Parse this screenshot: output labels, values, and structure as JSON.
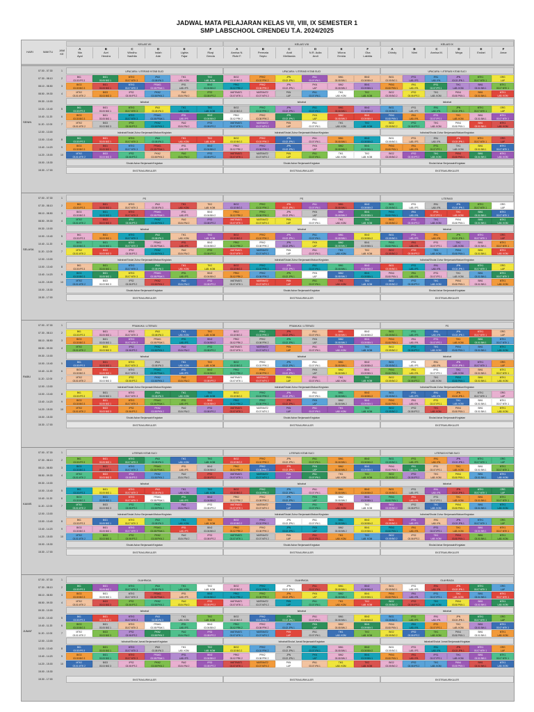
{
  "header": {
    "title_line1": "JADWAL MATA PELAJARAN KELAS VII, VIII, IX SEMESTER 1",
    "title_line2": "SMP LABSCHOOL CIRENDEU T.A. 2024/2025",
    "hari": "HARI",
    "waktu": "WAKTU",
    "jam_ke": "JAM KE",
    "groups": [
      "KELAS VII",
      "KELAS VIII",
      "KELAS IX"
    ],
    "vii": [
      {
        "k": "A",
        "w1": "Nia",
        "w2": "Ayal"
      },
      {
        "k": "B",
        "w1": "Avri",
        "w2": "Hendra"
      },
      {
        "k": "C",
        "w1": "Windhu",
        "w2": "Nadhila"
      },
      {
        "k": "D",
        "w1": "Indah",
        "w2": "Ade"
      },
      {
        "k": "E",
        "w1": "Lighta",
        "w2": "Fajar"
      },
      {
        "k": "F",
        "w1": "Rizqi",
        "w2": "Genda"
      }
    ],
    "viii": [
      {
        "k": "A",
        "w1": "Annisa N.",
        "w2": "Rizki F."
      },
      {
        "k": "B",
        "w1": "Permata",
        "w2": "Septo"
      },
      {
        "k": "C",
        "w1": "Andi",
        "w2": "Meilianda"
      },
      {
        "k": "D",
        "w1": "N.R. Aulia",
        "w2": "Andi"
      },
      {
        "k": "E",
        "w1": "Wiona",
        "w2": "Ernida"
      },
      {
        "k": "F",
        "w1": "Oka",
        "w2": "Lakhita"
      }
    ],
    "ix": [
      {
        "k": "A",
        "w1": "Chindy"
      },
      {
        "k": "B",
        "w1": "Nimi"
      },
      {
        "k": "C",
        "w1": "Annisa M."
      },
      {
        "k": "D",
        "w1": "Mega"
      },
      {
        "k": "E",
        "w1": "Endari"
      },
      {
        "k": "F",
        "w1": "Amar"
      }
    ]
  },
  "times": [
    "07.00 - 07.30",
    "07.30 - 08.10",
    "08.10 - 08.50",
    "08.50 - 09.30",
    "09.30 - 10.00",
    "10.00 - 10.40",
    "10.40 - 11.20",
    "11.20 - 12.00",
    "12.00 - 13.00",
    "13.00 - 13.40",
    "13.40 - 14.20",
    "14.20 - 15.00",
    "15.00 - 15.30",
    "15.30 - 17.00"
  ],
  "jam": [
    "1",
    "2",
    "3",
    "4",
    "",
    "5",
    "6",
    "7",
    "",
    "8",
    "9",
    "10",
    "",
    ""
  ],
  "days": [
    {
      "name": "SENIN",
      "band_top": [
        "UPACARA / LITERASI KITAB SUCI",
        "UPACARA / LITERASI KITAB SUCI",
        "UPACARA / LITERASI KITAB SUCI"
      ],
      "istirahat": "Istirahat",
      "ishoma": "Istirahat/Sholat Zuhur Berjamaah/Makan/Kegiatan",
      "asr": "Sholat Ashar Berjamaah/Kegiatan",
      "ekskul": "EKSTRAKURIKULER"
    },
    {
      "name": "SELASA",
      "band_top": [
        "PS",
        "PS",
        "LITERASI"
      ],
      "istirahat": "Istirahat",
      "ishoma": "Istirahat/Sholat Zuhur Berjamaah/Makan/Kegiatan",
      "asr": "Sholat Ashar Berjamaah/Kegiatan",
      "ekskul": "EKSTRAKURIKULER"
    },
    {
      "name": "RABU",
      "band_top": [
        "PRAMUKA / LITERASI",
        "PRAMUKA / LITERASI",
        "PS"
      ],
      "istirahat": "Istirahat",
      "ishoma": "Istirahat/Sholat Zuhur Berjamaah/Makan/Kegiatan",
      "asr": "Sholat Ashar Berjamaah/Kegiatan",
      "ekskul": "EKSTRAKURIKULER"
    },
    {
      "name": "KAMIS",
      "band_top": [
        "LITERASI KITAB SUCI",
        "LITERASI KITAB SUCI",
        "LITERASI KITAB SUCI"
      ],
      "istirahat": "Istirahat",
      "ishoma": "Istirahat/Sholat Zuhur Berjamaah/Makan/Kegiatan",
      "asr": "Sholat Ashar Berjamaah/Kegiatan",
      "ekskul": "EKSTRAKURIKULER"
    },
    {
      "name": "JUMAT",
      "band_top": [
        "OLAHRAGA",
        "OLAHRAGA",
        "OLAHRAGA"
      ],
      "istirahat": "Istirahat",
      "ishoma": "Istirahat/Sholat Jumat Berjamaah/Kegiatan",
      "asr": "",
      "ekskul": "EKSTRAKURIKULER"
    }
  ],
  "sample_cells": {
    "senin": [
      [
        [
          "BK1",
          "03.03 IPS 3"
        ],
        [
          "BIG1",
          "03.05 BIG 1"
        ],
        [
          "MTK3",
          "03.07 MTK 3"
        ],
        [
          "IPA3",
          "03.08 IPA 3"
        ],
        [
          "TIK1",
          "LAB. KOM"
        ],
        [
          "TIK2",
          "LAB. KOM"
        ]
      ],
      [
        [
          "BIG3",
          "03.03 BIG 3"
        ],
        [
          "BIG1",
          "03.05 BIG 1"
        ],
        [
          "MTK3",
          "03.07 MTK 3"
        ],
        [
          "PRAK1",
          "03.08 PRAK 1"
        ],
        [
          "IPS1",
          "LAB. IPS"
        ],
        [
          "BIN2",
          "03.06 BIN 2"
        ]
      ],
      [
        [
          "MTK2",
          "03.01 MTK 2"
        ],
        [
          "BIG3",
          "03.03 BIG 3"
        ],
        [
          "IPS2",
          "03.06 IPS 2"
        ],
        [
          "PKN2",
          "03.08 PKN 2"
        ],
        [
          "PAI2",
          "03.04 PAI 2"
        ],
        [
          "IPS2",
          "03.08 IPS 2"
        ]
      ]
    ],
    "viii": [
      [
        [
          "BIG2",
          "03.02 BIG 2"
        ],
        [
          "PRK2",
          "03.02 PRK 2"
        ],
        [
          "JPN",
          "03.02 JPN 1"
        ],
        [
          "IPA1",
          "03.07 IPA 1"
        ],
        [
          "BIN1",
          "03.08 BIN 1"
        ],
        [
          "BIN2",
          "03.08 BIN 2"
        ]
      ],
      [
        [
          "PRK2",
          "03.02 PRK 2"
        ],
        [
          "PRK2",
          "03.08 PRK 2"
        ],
        [
          "JPN",
          "03.02 JPN 1"
        ],
        [
          "PKN",
          "LAP"
        ],
        [
          "BIN2",
          "03.08 BIN 2"
        ],
        [
          "BIN1",
          "03.09 BIN 1"
        ]
      ],
      [
        [
          "MATEMAT1",
          "03.07 MTK 1"
        ],
        [
          "MATEMAT2",
          "03.07 MTK 2"
        ],
        [
          "PKN",
          "LAP"
        ],
        [
          "IPA1",
          "03.07 IPA 1"
        ],
        [
          "TIK1",
          "LAB. KOM"
        ],
        [
          "TIK2",
          "LAB. KOM"
        ]
      ]
    ],
    "ix": [
      [
        [
          "BIG1",
          "03.05 BIG 1"
        ],
        [
          "IPS1",
          "LAB. IPS"
        ],
        [
          "IPA1",
          "LAB. IPA"
        ],
        [
          "JPN",
          "03.03 JPN 1"
        ],
        [
          "MTK1",
          "03.07 MTK 1"
        ],
        [
          "ORG",
          "LAP"
        ]
      ],
      [
        [
          "PKN1",
          "03.08 PKN 1"
        ],
        [
          "IPA1",
          "LAB. IPA"
        ],
        [
          "IPS1",
          "03.07 IPS 1"
        ],
        [
          "TIK1",
          "LAB. KOM"
        ],
        [
          "BIN1",
          "03.01 BIN 1"
        ],
        [
          "MTK1",
          "03.07 MTK 1"
        ]
      ],
      [
        [
          "BIG2",
          "03.05 BIG 2"
        ],
        [
          "IPS2",
          "03.06 IPS 2"
        ],
        [
          "TIK1",
          "LAB. KOM"
        ],
        [
          "PKN1",
          "03.08 PKN 1"
        ],
        [
          "BIN1",
          "03.01 BIN 1"
        ],
        [
          "MTK1",
          "LAB. KOM"
        ]
      ]
    ]
  },
  "palette": [
    "#f0e53c",
    "#f29a3a",
    "#7fbf4d",
    "#5aa3d9",
    "#c4c4c4",
    "#e0463c",
    "#9b59b6",
    "#e8b0d0",
    "#2d8f5a",
    "#3a6fb4",
    "#f2c3a0",
    "#ffffff",
    "#4fc08d",
    "#b38bd1",
    "#d9534f",
    "#17a2b8"
  ]
}
